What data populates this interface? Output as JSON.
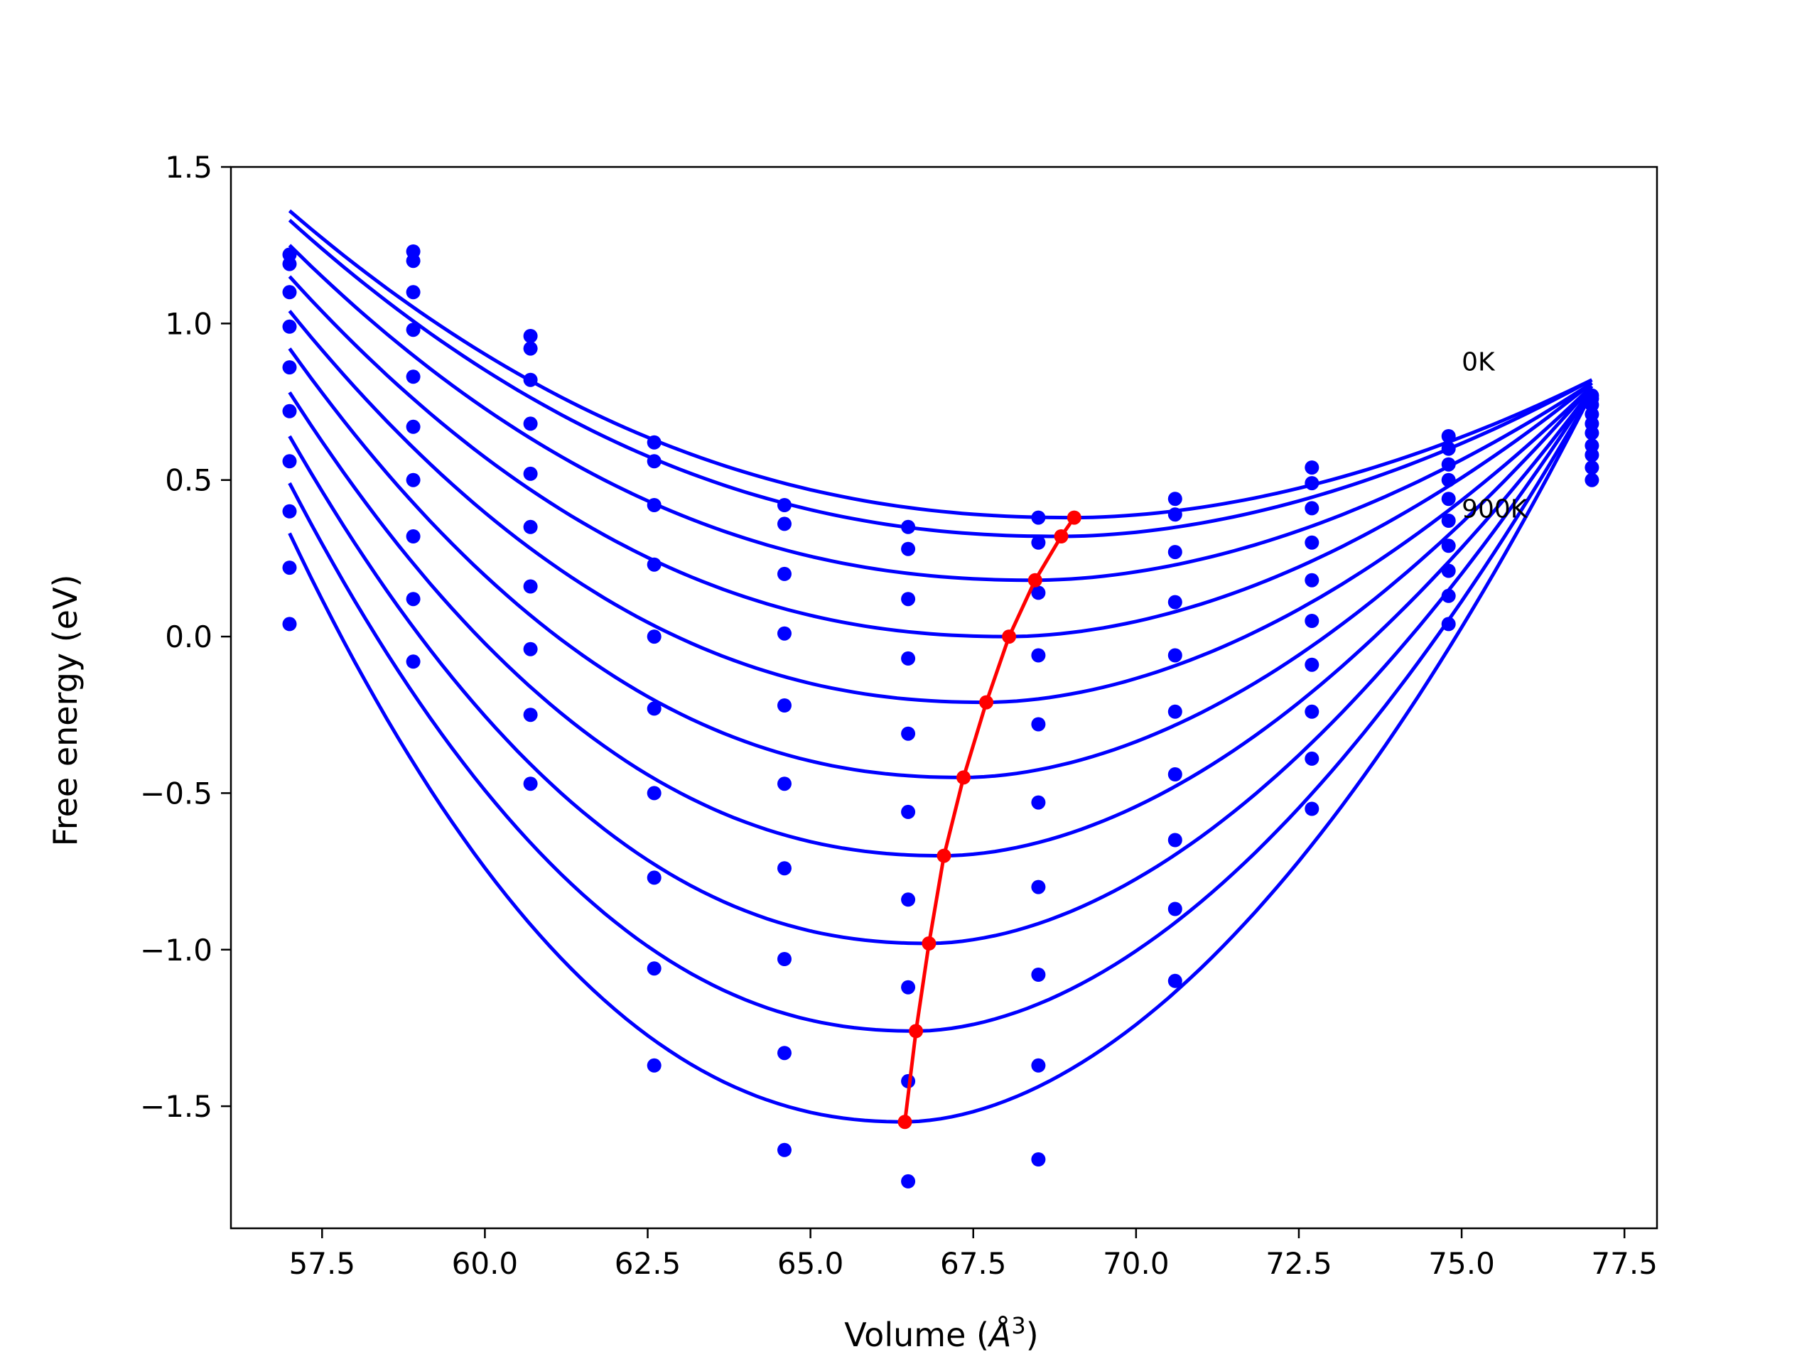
{
  "chart_data": {
    "type": "scatter",
    "xlabel": "Volume (Å³)",
    "xlabel_main": "Volume (",
    "xlabel_unit": "Å",
    "xlabel_sup": "3",
    "xlabel_close": ")",
    "ylabel": "Free energy (eV)",
    "xlim": [
      56.1,
      78.0
    ],
    "ylim": [
      -1.89,
      1.5
    ],
    "xticks": [
      57.5,
      60.0,
      62.5,
      65.0,
      67.5,
      70.0,
      72.5,
      75.0,
      77.5
    ],
    "xtick_labels": [
      "57.5",
      "60.0",
      "62.5",
      "65.0",
      "67.5",
      "70.0",
      "72.5",
      "75.0",
      "77.5"
    ],
    "yticks": [
      1.5,
      1.0,
      0.5,
      0.0,
      -0.5,
      -1.0,
      -1.5
    ],
    "ytick_labels": [
      "1.5",
      "1.0",
      "0.5",
      "0.0",
      "−0.5",
      "−1.0",
      "−1.5"
    ],
    "grid": false,
    "colors": {
      "fit_curves": "#0000ff",
      "data_points": "#0000ff",
      "minimum_path": "#ff0000"
    },
    "annotations": [
      {
        "text": "0K",
        "x": 75.0,
        "y": 0.85
      },
      {
        "text": "900K",
        "x": 75.0,
        "y": 0.38
      }
    ],
    "volumes": [
      57.0,
      58.9,
      60.7,
      62.6,
      64.6,
      66.5,
      68.5,
      70.6,
      72.7,
      74.8,
      77.0
    ],
    "fit_range": [
      57.0,
      77.0
    ],
    "series": [
      {
        "minimum_volume": 69.05,
        "minimum_energy": 0.38,
        "points": [
          1.22,
          1.23,
          0.96,
          0.62,
          0.42,
          0.35,
          0.38,
          0.44,
          0.54,
          0.64,
          0.77
        ]
      },
      {
        "minimum_volume": 68.85,
        "minimum_energy": 0.32,
        "points": [
          1.19,
          1.2,
          0.92,
          0.56,
          0.36,
          0.28,
          0.3,
          0.39,
          0.49,
          0.6,
          0.76
        ]
      },
      {
        "minimum_volume": 68.45,
        "minimum_energy": 0.18,
        "points": [
          1.1,
          1.1,
          0.82,
          0.42,
          0.2,
          0.12,
          0.14,
          0.27,
          0.41,
          0.55,
          0.74
        ]
      },
      {
        "minimum_volume": 68.05,
        "minimum_energy": 0.0,
        "points": [
          0.99,
          0.98,
          0.68,
          0.23,
          0.01,
          -0.07,
          -0.06,
          0.11,
          0.3,
          0.5,
          0.71
        ]
      },
      {
        "minimum_volume": 67.7,
        "minimum_energy": -0.21,
        "points": [
          0.86,
          0.83,
          0.52,
          0.0,
          -0.22,
          -0.31,
          -0.28,
          -0.06,
          0.18,
          0.44,
          0.68
        ]
      },
      {
        "minimum_volume": 67.35,
        "minimum_energy": -0.45,
        "points": [
          0.72,
          0.67,
          0.35,
          -0.23,
          -0.47,
          -0.56,
          -0.53,
          -0.24,
          0.05,
          0.37,
          0.65
        ]
      },
      {
        "minimum_volume": 67.05,
        "minimum_energy": -0.7,
        "points": [
          0.56,
          0.5,
          0.16,
          -0.5,
          -0.74,
          -0.84,
          -0.8,
          -0.44,
          -0.09,
          0.29,
          0.61
        ]
      },
      {
        "minimum_volume": 66.82,
        "minimum_energy": -0.98,
        "points": [
          0.4,
          0.32,
          -0.04,
          -0.77,
          -1.03,
          -1.12,
          -1.08,
          -0.65,
          -0.24,
          0.21,
          0.58
        ]
      },
      {
        "minimum_volume": 66.62,
        "minimum_energy": -1.26,
        "points": [
          0.22,
          0.12,
          -0.25,
          -1.06,
          -1.33,
          -1.42,
          -1.37,
          -0.87,
          -0.39,
          0.13,
          0.54
        ]
      },
      {
        "minimum_volume": 66.45,
        "minimum_energy": -1.55,
        "points": [
          0.04,
          -0.08,
          -0.47,
          -1.37,
          -1.64,
          -1.74,
          -1.67,
          -1.1,
          -0.55,
          0.04,
          0.5
        ]
      }
    ],
    "curve_endpoints": [
      {
        "left": 1.36,
        "right": 0.82
      },
      {
        "left": 1.33,
        "right": 0.82
      },
      {
        "left": 1.25,
        "right": 0.81
      },
      {
        "left": 1.15,
        "right": 0.81
      },
      {
        "left": 1.04,
        "right": 0.8
      },
      {
        "left": 0.92,
        "right": 0.8
      },
      {
        "left": 0.78,
        "right": 0.79
      },
      {
        "left": 0.64,
        "right": 0.79
      },
      {
        "left": 0.49,
        "right": 0.78
      },
      {
        "left": 0.33,
        "right": 0.78
      }
    ]
  }
}
